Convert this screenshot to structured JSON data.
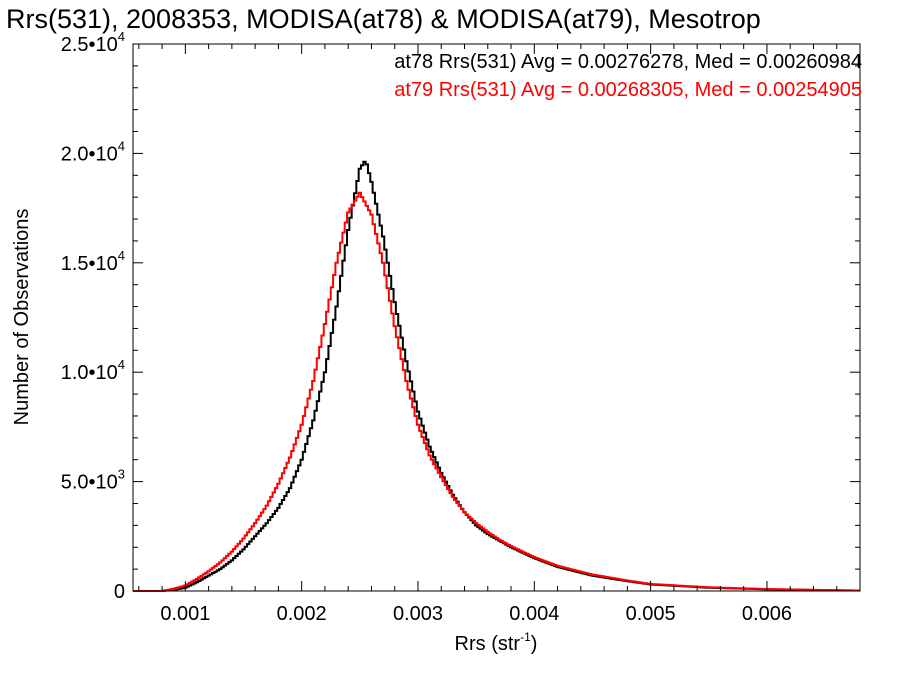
{
  "chart_data": {
    "type": "line",
    "title": "Rrs(531), 2008353, MODISA(at78) & MODISA(at79), Mesotrop",
    "xlabel": "Rrs (str",
    "xlabel_sup": "-1",
    "xlabel_close": ")",
    "ylabel": "Number of Observations",
    "xlim": [
      0.00055,
      0.0068
    ],
    "ylim": [
      0,
      25000
    ],
    "x_ticks": [
      {
        "value": 0.001,
        "label": "0.001"
      },
      {
        "value": 0.002,
        "label": "0.002"
      },
      {
        "value": 0.003,
        "label": "0.003"
      },
      {
        "value": 0.004,
        "label": "0.004"
      },
      {
        "value": 0.005,
        "label": "0.005"
      },
      {
        "value": 0.006,
        "label": "0.006"
      }
    ],
    "y_ticks": [
      {
        "value": 0,
        "mant": "0",
        "exp": ""
      },
      {
        "value": 5000,
        "mant": "5.0•10",
        "exp": "3"
      },
      {
        "value": 10000,
        "mant": "1.0•10",
        "exp": "4"
      },
      {
        "value": 15000,
        "mant": "1.5•10",
        "exp": "4"
      },
      {
        "value": 20000,
        "mant": "2.0•10",
        "exp": "4"
      },
      {
        "value": 25000,
        "mant": "2.5•10",
        "exp": "4"
      }
    ],
    "grid": false,
    "legend_position": "top-right",
    "series": [
      {
        "name": "at78",
        "color": "#000000",
        "annotation": "at78 Rrs(531) Avg = 0.00276278, Med = 0.00260984",
        "x": [
          0.00055,
          0.0008,
          0.0009,
          0.001,
          0.0011,
          0.0012,
          0.0013,
          0.0014,
          0.0015,
          0.0016,
          0.0017,
          0.0018,
          0.0019,
          0.002,
          0.0021,
          0.0022,
          0.0023,
          0.0024,
          0.0025,
          0.00255,
          0.0026,
          0.0027,
          0.0028,
          0.0029,
          0.003,
          0.0031,
          0.0032,
          0.0033,
          0.0034,
          0.0035,
          0.0036,
          0.0037,
          0.0038,
          0.004,
          0.0042,
          0.0045,
          0.0048,
          0.005,
          0.0055,
          0.006,
          0.0065,
          0.0068
        ],
        "y": [
          0,
          0,
          50,
          150,
          400,
          700,
          1000,
          1400,
          1900,
          2500,
          3100,
          3800,
          4700,
          6000,
          7800,
          10000,
          13000,
          16500,
          19300,
          19700,
          18700,
          16200,
          13200,
          10500,
          8200,
          6600,
          5400,
          4400,
          3600,
          3000,
          2600,
          2300,
          2000,
          1500,
          1100,
          700,
          450,
          300,
          150,
          80,
          40,
          20
        ]
      },
      {
        "name": "at79",
        "color": "#ff0000",
        "annotation": "at79 Rrs(531) Avg = 0.00268305, Med = 0.00254905",
        "x": [
          0.00055,
          0.0008,
          0.0009,
          0.001,
          0.0011,
          0.0012,
          0.0013,
          0.0014,
          0.0015,
          0.0016,
          0.0017,
          0.0018,
          0.0019,
          0.002,
          0.0021,
          0.0022,
          0.0023,
          0.0024,
          0.0025,
          0.0026,
          0.0027,
          0.0028,
          0.0029,
          0.003,
          0.0031,
          0.0032,
          0.0033,
          0.0034,
          0.0035,
          0.0036,
          0.0037,
          0.0038,
          0.004,
          0.0042,
          0.0045,
          0.0048,
          0.005,
          0.0055,
          0.006,
          0.0065,
          0.0068
        ],
        "y": [
          0,
          0,
          100,
          250,
          550,
          900,
          1300,
          1800,
          2400,
          3100,
          3900,
          4900,
          6100,
          7600,
          9600,
          12200,
          15000,
          17300,
          18200,
          17200,
          15000,
          12100,
          9600,
          7600,
          6200,
          5200,
          4300,
          3600,
          3100,
          2700,
          2350,
          2050,
          1550,
          1150,
          750,
          480,
          320,
          170,
          90,
          45,
          20
        ]
      }
    ]
  }
}
